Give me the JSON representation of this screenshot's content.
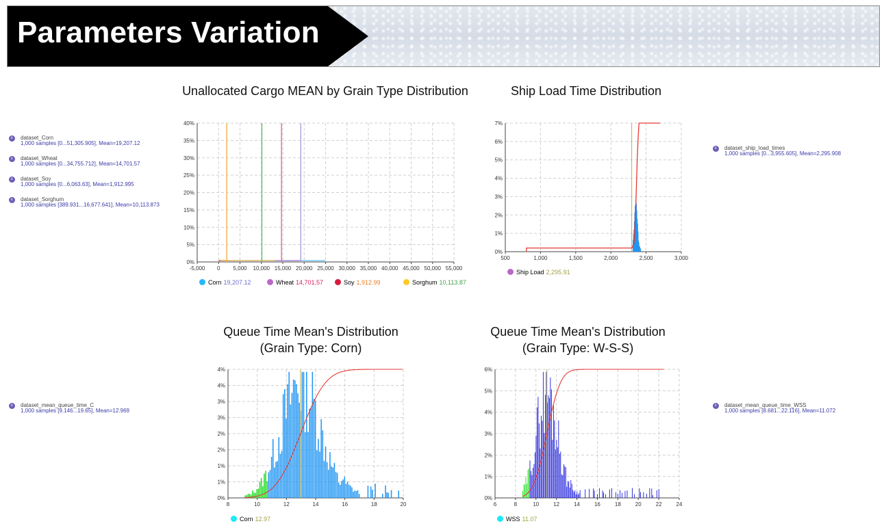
{
  "header": {
    "title": "Parameters Variation"
  },
  "datasets": {
    "corn": {
      "name": "dataset_Corn",
      "info": "1,000 samples [0...51,305.905], Mean=19,207.12"
    },
    "wheat": {
      "name": "dataset_Wheat",
      "info": "1,000 samples [0...34,755.712], Mean=14,701.57"
    },
    "soy": {
      "name": "dataset_Soy",
      "info": "1,000 samples [0...6,063.63], Mean=1,912.995"
    },
    "sorghum": {
      "name": "dataset_Sorghum",
      "info": "1,000 samples [389.931...16,677.641], Mean=10,113.873"
    },
    "ship": {
      "name": "dataset_ship_load_times",
      "info": "1,000 samples [0...3,955.605], Mean=2,295.908"
    },
    "qc": {
      "name": "dataset_mean_queue_time_C",
      "info": "1,000 samples [9.146...19.65], Mean=12.969"
    },
    "qw": {
      "name": "dataset_mean_queue_time_WSS",
      "info": "1,000 samples [8.681...22.116], Mean=11.072"
    }
  },
  "chart_data": [
    {
      "id": "cargo",
      "type": "histogram",
      "title": "Unallocated Cargo MEAN by Grain Type Distribution",
      "xlim": [
        -5000,
        55000
      ],
      "ylim": [
        0,
        40
      ],
      "xticks": [
        -5000,
        0,
        5000,
        10000,
        15000,
        20000,
        25000,
        30000,
        35000,
        40000,
        45000,
        50000,
        55000
      ],
      "xtick_labels": [
        "-5,000",
        "0",
        "5,000",
        "10,000",
        "15,000",
        "20,000",
        "25,000",
        "30,000",
        "35,000",
        "40,000",
        "45,000",
        "50,000",
        "55,000"
      ],
      "yticks": [
        0,
        5,
        10,
        15,
        20,
        25,
        30,
        35,
        40
      ],
      "ytick_labels": [
        "0%",
        "5%",
        "10%",
        "15%",
        "20%",
        "25%",
        "30%",
        "35%",
        "40%"
      ],
      "series": [
        {
          "name": "Corn",
          "value": "19,207.12",
          "mean": 19207.12,
          "color": "#29b6f6",
          "line_color": "#b0a4e0",
          "value_color": "#6b6bd0",
          "start": 0
        },
        {
          "name": "Wheat",
          "value": "14,701.57",
          "mean": 14701.57,
          "color": "#ba68c8",
          "line_color": "#e57399",
          "value_color": "#d81b60",
          "start": 0
        },
        {
          "name": "Soy",
          "value": "1,912.99",
          "mean": 1912.99,
          "color": "#d81b3c",
          "line_color": "#f2b35a",
          "value_color": "#e67e22",
          "start": 0
        },
        {
          "name": "Sorghum",
          "value": "10,113.87",
          "mean": 10113.87,
          "color": "#ffca28",
          "line_color": "#6cc070",
          "value_color": "#43a047",
          "start": 389.931
        }
      ]
    },
    {
      "id": "ship",
      "type": "histogram",
      "title": "Ship Load Time Distribution",
      "xlim": [
        500,
        3000
      ],
      "ylim": [
        0,
        7
      ],
      "xticks": [
        500,
        1000,
        1500,
        2000,
        2500,
        3000
      ],
      "xtick_labels": [
        "500",
        "1,000",
        "1,500",
        "2,000",
        "2,500",
        "3,000"
      ],
      "yticks": [
        0,
        1,
        2,
        3,
        4,
        5,
        6,
        7
      ],
      "ytick_labels": [
        "0%",
        "1%",
        "2%",
        "3%",
        "4%",
        "5%",
        "6%",
        "7%"
      ],
      "mean": 2295.91,
      "cdf": [
        [
          800,
          0
        ],
        [
          800,
          0.2
        ],
        [
          2300,
          0.2
        ],
        [
          2330,
          0.5
        ],
        [
          2345,
          1.6
        ],
        [
          2360,
          3.2
        ],
        [
          2375,
          5.2
        ],
        [
          2390,
          6.4
        ],
        [
          2400,
          7
        ],
        [
          2700,
          7
        ]
      ],
      "series": [
        {
          "name": "Ship Load",
          "value": "2,295.91",
          "color": "#ba68c8",
          "bar_color": "#2196f3",
          "value_color": "#a0a040"
        }
      ]
    },
    {
      "id": "qc",
      "type": "histogram",
      "title": "Queue Time Mean's Distribution",
      "subtitle": "(Grain Type: Corn)",
      "xlim": [
        8,
        20
      ],
      "ylim": [
        0,
        4
      ],
      "xticks": [
        8,
        10,
        12,
        14,
        16,
        18,
        20
      ],
      "xtick_labels": [
        "8",
        "10",
        "12",
        "14",
        "16",
        "18",
        "20"
      ],
      "yticks": [
        0,
        0.5,
        1,
        1.5,
        2,
        2.5,
        3,
        3.5,
        4
      ],
      "ytick_labels": [
        "0%",
        "1%",
        "1%",
        "2%",
        "2%",
        "3%",
        "3%",
        "4%",
        "4%"
      ],
      "mean": 12.97,
      "sd": 1.35,
      "bin": 0.1,
      "peak": 3.8,
      "range": [
        9.146,
        19.65
      ],
      "series": [
        {
          "name": "Corn",
          "value": "12.97",
          "color": "#1de9f6",
          "bar_color": "#2196f3",
          "low_color": "#22dd22",
          "value_color": "#a0a040"
        }
      ]
    },
    {
      "id": "qw",
      "type": "histogram",
      "title": "Queue Time Mean's Distribution",
      "subtitle": "(Grain Type: W-S-S)",
      "xlim": [
        6,
        24
      ],
      "ylim": [
        0,
        6
      ],
      "xticks": [
        6,
        8,
        10,
        12,
        14,
        16,
        18,
        20,
        22,
        24
      ],
      "xtick_labels": [
        "6",
        "8",
        "10",
        "12",
        "14",
        "16",
        "18",
        "20",
        "22",
        "24"
      ],
      "yticks": [
        0,
        1,
        2,
        3,
        4,
        5,
        6
      ],
      "ytick_labels": [
        "0%",
        "1%",
        "2%",
        "3%",
        "4%",
        "5%",
        "6%"
      ],
      "mean": 11.07,
      "sd": 1.05,
      "bin": 0.1,
      "peak": 5.2,
      "range": [
        8.681,
        22.116
      ],
      "series": [
        {
          "name": "WSS",
          "value": "11.07",
          "color": "#1de9f6",
          "bar_color": "#1a1ad9",
          "low_color": "#22dd22",
          "value_color": "#a0a040"
        }
      ]
    }
  ]
}
